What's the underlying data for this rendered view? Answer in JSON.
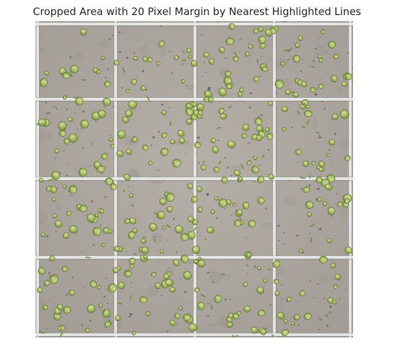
{
  "figure": {
    "title": "Cropped Area with 20 Pixel Margin by Nearest Highlighted Lines"
  },
  "image": {
    "subject": "microscope-hemocytometer-grid-with-green-cells",
    "colors": {
      "background": "#a9a49d",
      "background_light": "#b6b1aa",
      "grid_line": "#e9ecec",
      "grid_shadow": "#8f8b85",
      "cell_fill": "#9fb35a",
      "cell_dark": "#6f8a3a",
      "cell_highlight": "#d2dc9c",
      "debris": "#5c5a55"
    }
  }
}
